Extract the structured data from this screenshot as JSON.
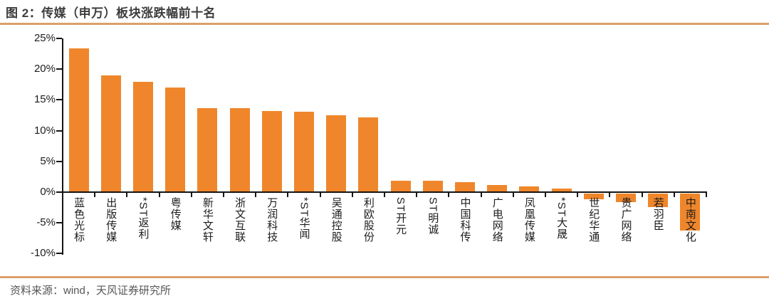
{
  "header": {
    "title": "图 2：传媒（申万）板块涨跌幅前十名"
  },
  "footer": {
    "source": "资料来源：wind，天风证券研究所"
  },
  "colors": {
    "bar": "#F0862B",
    "accent_rule": "#DCA06A",
    "axis": "#141414",
    "label_text": "#1C1C1C",
    "source_text": "#565656"
  },
  "chart_data": {
    "type": "bar",
    "title": "传媒（申万）板块涨跌幅前十名",
    "unit": "%",
    "categories": [
      "蓝色光标",
      "出版传媒",
      "*ST返利",
      "粤传媒",
      "新华文轩",
      "浙文互联",
      "万润科技",
      "*ST华闻",
      "吴通控股",
      "利欧股份",
      "ST开元",
      "ST明诚",
      "中国科传",
      "广电网络",
      "凤凰传媒",
      "*ST大晟",
      "世纪华通",
      "贵广网络",
      "若羽臣",
      "中南文化"
    ],
    "values": [
      23.4,
      19.0,
      17.9,
      17.0,
      13.7,
      13.6,
      13.2,
      13.1,
      12.5,
      12.2,
      1.9,
      1.8,
      1.6,
      1.2,
      0.9,
      0.6,
      -0.9,
      -1.4,
      -2.2,
      -6.0
    ],
    "ylim": [
      -10,
      25
    ],
    "ytick_values": [
      25,
      20,
      15,
      10,
      5,
      0,
      -5,
      -10
    ],
    "ytick_labels": [
      "25%",
      "20%",
      "15%",
      "10%",
      "5%",
      "0%",
      "-5%",
      "-10%"
    ],
    "grid": false,
    "legend": null,
    "bar_color": "#F0862B"
  }
}
